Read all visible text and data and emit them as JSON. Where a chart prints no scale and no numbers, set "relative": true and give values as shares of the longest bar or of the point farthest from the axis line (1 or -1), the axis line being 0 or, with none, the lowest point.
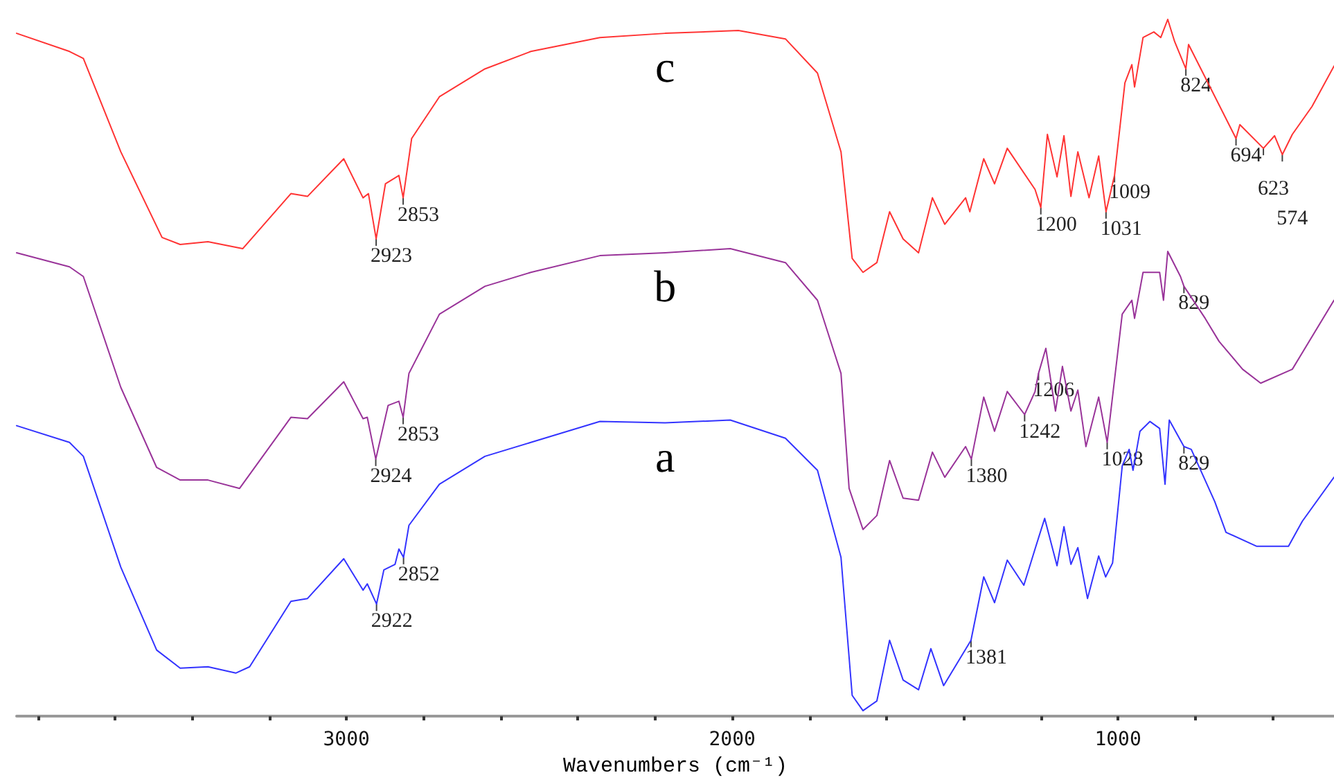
{
  "chart_data": {
    "type": "line",
    "relative": true,
    "xlabel": "Wavenumbers (cm⁻¹)",
    "xlim": [
      3855,
      440
    ],
    "xticks": [
      {
        "value": 3800,
        "label": null
      },
      {
        "value": 3600,
        "label": null
      },
      {
        "value": 3400,
        "label": null
      },
      {
        "value": 3200,
        "label": null
      },
      3000,
      {
        "value": 2800,
        "label": null
      },
      {
        "value": 2600,
        "label": null
      },
      {
        "value": 2400,
        "label": null
      },
      {
        "value": 2200,
        "label": null
      },
      2000,
      {
        "value": 1800,
        "label": null
      },
      {
        "value": 1600,
        "label": null
      },
      {
        "value": 1400,
        "label": null
      },
      {
        "value": 1200,
        "label": null
      },
      1000,
      {
        "value": 800,
        "label": null
      },
      {
        "value": 600,
        "label": null
      }
    ],
    "grid": false,
    "legend": false,
    "marker": "none",
    "line_style": "solid",
    "series": [
      {
        "name": "c",
        "color": "#ff3333",
        "x": [
          3855,
          3718,
          3682,
          3585,
          3478,
          3431,
          3359,
          3269,
          3144,
          3101,
          3007,
          2957,
          2943,
          2923,
          2899,
          2864,
          2853,
          2831,
          2759,
          2641,
          2522,
          2343,
          2174,
          1984,
          1862,
          1779,
          1718,
          1689,
          1661,
          1625,
          1592,
          1557,
          1517,
          1481,
          1449,
          1395,
          1384,
          1348,
          1320,
          1287,
          1215,
          1200,
          1183,
          1158,
          1140,
          1122,
          1104,
          1075,
          1050,
          1031,
          1009,
          982,
          964,
          957,
          935,
          907,
          889,
          871,
          853,
          824,
          817,
          785,
          694,
          684,
          623,
          594,
          574,
          548,
          497,
          440
        ],
        "values": [
          0.98,
          0.954,
          0.944,
          0.81,
          0.687,
          0.677,
          0.681,
          0.671,
          0.75,
          0.746,
          0.8,
          0.744,
          0.75,
          0.685,
          0.764,
          0.776,
          0.744,
          0.829,
          0.889,
          0.929,
          0.954,
          0.974,
          0.98,
          0.984,
          0.972,
          0.923,
          0.81,
          0.657,
          0.637,
          0.651,
          0.724,
          0.685,
          0.665,
          0.744,
          0.706,
          0.744,
          0.724,
          0.8,
          0.764,
          0.815,
          0.756,
          0.73,
          0.835,
          0.774,
          0.833,
          0.746,
          0.81,
          0.744,
          0.804,
          0.724,
          0.776,
          0.909,
          0.935,
          0.903,
          0.974,
          0.982,
          0.974,
          1,
          0.968,
          0.929,
          0.964,
          0.929,
          0.829,
          0.849,
          0.815,
          0.833,
          0.806,
          0.835,
          0.875,
          0.933
        ]
      },
      {
        "name": "b",
        "color": "#993399",
        "x": [
          3855,
          3718,
          3682,
          3585,
          3492,
          3431,
          3359,
          3277,
          3144,
          3101,
          3007,
          2957,
          2946,
          2924,
          2892,
          2864,
          2853,
          2838,
          2759,
          2641,
          2522,
          2343,
          2174,
          2005,
          1862,
          1779,
          1718,
          1697,
          1661,
          1625,
          1592,
          1557,
          1517,
          1481,
          1449,
          1395,
          1380,
          1348,
          1320,
          1287,
          1242,
          1215,
          1206,
          1187,
          1162,
          1144,
          1122,
          1104,
          1083,
          1050,
          1028,
          1007,
          989,
          964,
          957,
          935,
          892,
          882,
          871,
          838,
          829,
          774,
          738,
          677,
          630,
          548,
          440
        ],
        "values": [
          0.665,
          0.645,
          0.631,
          0.472,
          0.357,
          0.339,
          0.339,
          0.327,
          0.429,
          0.427,
          0.48,
          0.427,
          0.429,
          0.369,
          0.446,
          0.452,
          0.429,
          0.492,
          0.577,
          0.617,
          0.637,
          0.661,
          0.665,
          0.671,
          0.651,
          0.597,
          0.492,
          0.327,
          0.268,
          0.288,
          0.367,
          0.313,
          0.31,
          0.379,
          0.343,
          0.387,
          0.369,
          0.458,
          0.409,
          0.466,
          0.433,
          0.466,
          0.492,
          0.528,
          0.438,
          0.502,
          0.438,
          0.468,
          0.387,
          0.458,
          0.393,
          0.492,
          0.577,
          0.597,
          0.571,
          0.637,
          0.637,
          0.597,
          0.667,
          0.631,
          0.617,
          0.571,
          0.538,
          0.498,
          0.478,
          0.498,
          0.597
        ]
      },
      {
        "name": "a",
        "color": "#3333ff",
        "x": [
          3855,
          3718,
          3682,
          3585,
          3492,
          3431,
          3359,
          3287,
          3251,
          3144,
          3101,
          3007,
          2957,
          2946,
          2922,
          2903,
          2874,
          2864,
          2852,
          2838,
          2759,
          2641,
          2522,
          2343,
          2174,
          2005,
          1862,
          1779,
          1718,
          1689,
          1661,
          1625,
          1592,
          1557,
          1517,
          1485,
          1452,
          1381,
          1348,
          1320,
          1287,
          1244,
          1215,
          1190,
          1158,
          1140,
          1122,
          1104,
          1079,
          1050,
          1032,
          1014,
          989,
          971,
          961,
          943,
          917,
          892,
          878,
          867,
          829,
          810,
          749,
          720,
          641,
          558,
          522,
          440
        ],
        "values": [
          0.417,
          0.393,
          0.373,
          0.214,
          0.095,
          0.069,
          0.071,
          0.062,
          0.071,
          0.165,
          0.169,
          0.226,
          0.181,
          0.19,
          0.161,
          0.21,
          0.218,
          0.24,
          0.228,
          0.274,
          0.333,
          0.373,
          0.393,
          0.423,
          0.421,
          0.425,
          0.399,
          0.353,
          0.228,
          0.03,
          0.008,
          0.022,
          0.109,
          0.052,
          0.038,
          0.097,
          0.044,
          0.109,
          0.2,
          0.163,
          0.224,
          0.188,
          0.24,
          0.284,
          0.216,
          0.272,
          0.218,
          0.242,
          0.169,
          0.23,
          0.2,
          0.22,
          0.359,
          0.383,
          0.353,
          0.409,
          0.423,
          0.413,
          0.333,
          0.425,
          0.387,
          0.383,
          0.308,
          0.264,
          0.244,
          0.244,
          0.28,
          0.343
        ]
      }
    ],
    "annotations": [
      {
        "text": "2923",
        "x": 2923,
        "y": 0.685
      },
      {
        "text": "2853",
        "x": 2853,
        "y": 0.744
      },
      {
        "text": "1200",
        "x": 1200,
        "y": 0.73
      },
      {
        "text": "1031",
        "x": 1031,
        "y": 0.724
      },
      {
        "text": "1009",
        "x": 1009,
        "y": 0.776
      },
      {
        "text": "824",
        "x": 824,
        "y": 0.929
      },
      {
        "text": "694",
        "x": 694,
        "y": 0.829
      },
      {
        "text": "623",
        "x": 623,
        "y": 0.815
      },
      {
        "text": "574",
        "x": 574,
        "y": 0.806
      },
      {
        "text": "2924",
        "x": 2924,
        "y": 0.369
      },
      {
        "text": "2853",
        "x": 2853,
        "y": 0.429
      },
      {
        "text": "1380",
        "x": 1380,
        "y": 0.369
      },
      {
        "text": "1242",
        "x": 1242,
        "y": 0.433
      },
      {
        "text": "1206",
        "x": 1206,
        "y": 0.492
      },
      {
        "text": "1028",
        "x": 1028,
        "y": 0.393
      },
      {
        "text": "829",
        "x": 829,
        "y": 0.617
      },
      {
        "text": "2922",
        "x": 2922,
        "y": 0.161
      },
      {
        "text": "2852",
        "x": 2852,
        "y": 0.228
      },
      {
        "text": "1381",
        "x": 1381,
        "y": 0.109
      },
      {
        "text": "829",
        "x": 829,
        "y": 0.387
      }
    ]
  }
}
